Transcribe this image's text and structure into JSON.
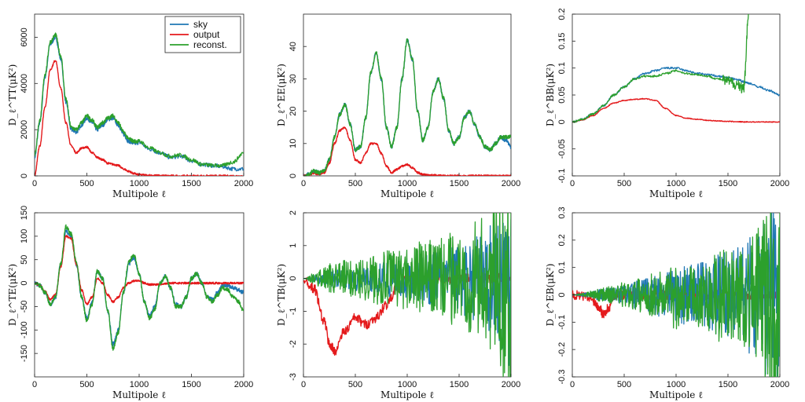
{
  "colors": {
    "sky": "#1f77b4",
    "output": "#e41a1c",
    "reconst": "#2ca02c"
  },
  "legend": {
    "placement": "top-right of first panel",
    "entries": [
      {
        "key": "sky",
        "label": "sky"
      },
      {
        "key": "output",
        "label": "output"
      },
      {
        "key": "reconst",
        "label": "reconst."
      }
    ]
  },
  "chart_data": [
    {
      "id": "TT",
      "type": "line",
      "ylabel": "D_ℓ^TT(μK²)",
      "xlabel": "Multipole ℓ",
      "xlim": [
        0,
        2000
      ],
      "ylim": [
        0,
        7000
      ],
      "xticks": [
        "0",
        "500",
        "1000",
        "1500",
        "2000"
      ],
      "yticks": [
        {
          "v": 0,
          "t": "0"
        },
        {
          "v": 2000,
          "t": "2000"
        },
        {
          "v": 4000,
          "t": "4000"
        },
        {
          "v": 6000,
          "t": "6000"
        }
      ],
      "x": [
        0,
        50,
        100,
        150,
        200,
        250,
        300,
        350,
        400,
        450,
        500,
        550,
        600,
        650,
        700,
        750,
        800,
        850,
        900,
        950,
        1000,
        1100,
        1200,
        1300,
        1400,
        1500,
        1600,
        1700,
        1800,
        1900,
        2000
      ],
      "series": [
        {
          "key": "sky",
          "values": [
            800,
            2300,
            4300,
            5700,
            6000,
            5100,
            3200,
            2000,
            1900,
            2200,
            2500,
            2300,
            2000,
            2200,
            2450,
            2500,
            2200,
            1800,
            1500,
            1400,
            1450,
            1150,
            1000,
            800,
            850,
            650,
            500,
            450,
            400,
            300,
            300
          ]
        },
        {
          "key": "output",
          "values": [
            0,
            1300,
            3000,
            4600,
            5000,
            3800,
            2300,
            1300,
            1000,
            1200,
            1250,
            1000,
            800,
            700,
            550,
            500,
            450,
            300,
            200,
            100,
            50,
            30,
            10,
            5,
            0,
            0,
            0,
            0,
            0,
            0,
            0
          ]
        },
        {
          "key": "reconst",
          "values": [
            900,
            2400,
            4400,
            5800,
            6100,
            5200,
            3300,
            2100,
            2000,
            2300,
            2600,
            2400,
            2100,
            2300,
            2500,
            2600,
            2300,
            1900,
            1600,
            1500,
            1500,
            1200,
            1000,
            850,
            900,
            700,
            500,
            450,
            450,
            600,
            1000
          ]
        }
      ]
    },
    {
      "id": "EE",
      "type": "line",
      "ylabel": "D_ℓ^EE(μK²)",
      "xlabel": "Multipole ℓ",
      "xlim": [
        0,
        2000
      ],
      "ylim": [
        0,
        50
      ],
      "xticks": [
        "0",
        "500",
        "1000",
        "1500",
        "2000"
      ],
      "yticks": [
        {
          "v": 0,
          "t": "0"
        },
        {
          "v": 10,
          "t": "10"
        },
        {
          "v": 20,
          "t": "20"
        },
        {
          "v": 30,
          "t": "30"
        },
        {
          "v": 40,
          "t": "40"
        }
      ],
      "x": [
        0,
        50,
        100,
        150,
        200,
        250,
        300,
        350,
        400,
        450,
        500,
        550,
        600,
        650,
        700,
        750,
        800,
        850,
        900,
        950,
        1000,
        1050,
        1100,
        1150,
        1200,
        1250,
        1300,
        1350,
        1400,
        1450,
        1500,
        1550,
        1600,
        1650,
        1700,
        1750,
        1800,
        1850,
        1900,
        1950,
        2000
      ],
      "series": [
        {
          "key": "sky",
          "values": [
            0,
            0.5,
            1.5,
            1,
            1.5,
            5,
            12,
            19,
            22,
            16,
            8,
            9,
            18,
            32,
            38,
            30,
            15,
            9,
            15,
            30,
            42,
            36,
            20,
            11,
            15,
            26,
            30,
            24,
            14,
            10,
            12,
            18,
            20,
            16,
            12,
            9,
            8,
            10,
            12,
            11,
            9
          ]
        },
        {
          "key": "output",
          "values": [
            0,
            0.3,
            0.8,
            0.5,
            1,
            4,
            10,
            14,
            15,
            11,
            5,
            4,
            7,
            10,
            10,
            7,
            3,
            1,
            2,
            3,
            3.5,
            2.5,
            1,
            0.5,
            0.3,
            0.2,
            0.1,
            0,
            0,
            0,
            0,
            0,
            0,
            0,
            0,
            0,
            0,
            0,
            0,
            0,
            0
          ]
        },
        {
          "key": "reconst",
          "values": [
            0,
            0.5,
            1.5,
            1,
            1.5,
            5,
            12,
            19,
            22,
            16,
            8,
            9,
            18,
            32,
            38,
            30,
            15,
            9,
            15,
            30,
            42,
            36,
            20,
            11,
            15,
            26,
            30,
            24,
            14,
            10,
            12,
            18,
            20,
            16,
            12,
            9,
            8,
            10,
            12,
            12,
            12
          ]
        }
      ]
    },
    {
      "id": "BB",
      "type": "line",
      "ylabel": "D_ℓ^BB(μK²)",
      "xlabel": "Multipole ℓ",
      "xlim": [
        0,
        2000
      ],
      "ylim": [
        -0.1,
        0.2
      ],
      "xticks": [
        "0",
        "500",
        "1000",
        "1500",
        "2000"
      ],
      "yticks": [
        {
          "v": -0.1,
          "t": "-0.1"
        },
        {
          "v": -0.05,
          "t": "-0.05"
        },
        {
          "v": 0,
          "t": "0"
        },
        {
          "v": 0.05,
          "t": "0.05"
        },
        {
          "v": 0.1,
          "t": "0.1"
        },
        {
          "v": 0.15,
          "t": "0.15"
        },
        {
          "v": 0.2,
          "t": "0.2"
        }
      ],
      "x": [
        0,
        100,
        200,
        300,
        400,
        500,
        600,
        700,
        800,
        900,
        1000,
        1100,
        1200,
        1300,
        1400,
        1500,
        1600,
        1650,
        1700,
        1800,
        1900,
        2000
      ],
      "series": [
        {
          "key": "sky",
          "values": [
            0,
            0.005,
            0.015,
            0.03,
            0.05,
            0.065,
            0.08,
            0.09,
            0.095,
            0.1,
            0.1,
            0.095,
            0.09,
            0.088,
            0.085,
            0.082,
            0.078,
            0.075,
            0.072,
            0.065,
            0.058,
            0.05
          ]
        },
        {
          "key": "output",
          "values": [
            0,
            0.004,
            0.012,
            0.025,
            0.035,
            0.04,
            0.042,
            0.043,
            0.04,
            0.025,
            0.012,
            0.007,
            0.005,
            0.003,
            0.002,
            0.001,
            0.0005,
            0,
            0,
            0,
            0,
            0
          ]
        },
        {
          "key": "reconst",
          "values": [
            0,
            0.005,
            0.015,
            0.03,
            0.05,
            0.065,
            0.08,
            0.085,
            0.085,
            0.09,
            0.095,
            0.09,
            0.088,
            0.085,
            0.08,
            0.075,
            0.07,
            0.06,
            0.2,
            null,
            null,
            null
          ]
        }
      ]
    },
    {
      "id": "TE",
      "type": "line",
      "ylabel": "D_ℓ^TE(μK²)",
      "xlabel": "Multipole ℓ",
      "xlim": [
        0,
        2000
      ],
      "ylim": [
        -200,
        150
      ],
      "xticks": [
        "0",
        "500",
        "1000",
        "1500",
        "2000"
      ],
      "yticks": [
        {
          "v": -150,
          "t": "-150"
        },
        {
          "v": -100,
          "t": "-100"
        },
        {
          "v": -50,
          "t": "-50"
        },
        {
          "v": 0,
          "t": "0"
        },
        {
          "v": 50,
          "t": "50"
        },
        {
          "v": 100,
          "t": "100"
        },
        {
          "v": 150,
          "t": "150"
        }
      ],
      "x": [
        0,
        50,
        100,
        150,
        200,
        250,
        300,
        350,
        400,
        450,
        500,
        550,
        600,
        650,
        700,
        750,
        800,
        850,
        900,
        950,
        1000,
        1050,
        1100,
        1150,
        1200,
        1250,
        1300,
        1350,
        1400,
        1450,
        1500,
        1550,
        1600,
        1650,
        1700,
        1750,
        1800,
        1850,
        1900,
        1950,
        2000
      ],
      "series": [
        {
          "key": "sky",
          "values": [
            0,
            -5,
            -20,
            -45,
            -30,
            40,
            110,
            100,
            40,
            -30,
            -75,
            -40,
            25,
            10,
            -60,
            -130,
            -100,
            -20,
            40,
            55,
            20,
            -40,
            -70,
            -50,
            0,
            15,
            -10,
            -45,
            -50,
            -30,
            10,
            20,
            0,
            -30,
            -35,
            -20,
            -5,
            -5,
            -10,
            -15,
            -20
          ]
        },
        {
          "key": "output",
          "values": [
            0,
            -5,
            -18,
            -35,
            -25,
            35,
            100,
            95,
            40,
            -15,
            -45,
            -30,
            10,
            0,
            -25,
            -40,
            -30,
            -10,
            0,
            5,
            5,
            0,
            -3,
            -3,
            -2,
            -1,
            0,
            0,
            0,
            0,
            0,
            0,
            0,
            0,
            0,
            0,
            0,
            0,
            0,
            0,
            0
          ]
        },
        {
          "key": "reconst",
          "values": [
            0,
            -5,
            -20,
            -45,
            -30,
            40,
            120,
            105,
            45,
            -30,
            -80,
            -45,
            25,
            10,
            -60,
            -140,
            -105,
            -20,
            45,
            60,
            20,
            -40,
            -75,
            -55,
            0,
            15,
            -10,
            -50,
            -50,
            -30,
            10,
            20,
            0,
            -30,
            -40,
            -25,
            -10,
            -15,
            -30,
            -40,
            -60
          ]
        }
      ]
    },
    {
      "id": "TB",
      "type": "line",
      "ylabel": "D_ℓ^TB(μK²)",
      "xlabel": "Multipole ℓ",
      "xlim": [
        0,
        2000
      ],
      "ylim": [
        -3,
        2
      ],
      "xticks": [
        "0",
        "500",
        "1000",
        "1500",
        "2000"
      ],
      "yticks": [
        {
          "v": -3,
          "t": "-3"
        },
        {
          "v": -2,
          "t": "-2"
        },
        {
          "v": -1,
          "t": "-1"
        },
        {
          "v": 0,
          "t": "0"
        },
        {
          "v": 1,
          "t": "1"
        },
        {
          "v": 2,
          "t": "2"
        }
      ],
      "x": [
        0,
        100,
        200,
        250,
        300,
        400,
        500,
        600,
        700,
        800,
        900,
        1000,
        1100,
        1200,
        1300,
        1400,
        1500,
        1600,
        1700,
        1800,
        1900,
        2000
      ],
      "series": [
        {
          "key": "output",
          "values": [
            0,
            -0.3,
            -1.3,
            -2.0,
            -2.2,
            -1.6,
            -1.2,
            -1.4,
            -1.2,
            -0.8,
            -0.3,
            0,
            0,
            0,
            0,
            0,
            0,
            0,
            0,
            0,
            0,
            0
          ]
        },
        {
          "key": "sky",
          "values": [
            0,
            0.2,
            0.3,
            0.4,
            0.4,
            0.4,
            0.5,
            0.5,
            0.5,
            0.6,
            0.6,
            0.6,
            0.7,
            0.7,
            0.7,
            0.8,
            0.8,
            0.9,
            1.0,
            1.1,
            1.4,
            1.8
          ]
        },
        {
          "key": "reconst",
          "values": [
            0,
            0.3,
            0.6,
            0.7,
            0.7,
            0.8,
            0.8,
            0.8,
            0.9,
            0.9,
            0.9,
            0.9,
            1.0,
            1.0,
            1.0,
            1.1,
            1.1,
            1.2,
            1.3,
            1.5,
            2.0,
            2.2
          ]
        }
      ]
    },
    {
      "id": "EB",
      "type": "line",
      "ylabel": "D_ℓ^EB(μK²)",
      "xlabel": "Multipole ℓ",
      "xlim": [
        0,
        2000
      ],
      "ylim": [
        -0.3,
        0.3
      ],
      "xticks": [
        "0",
        "500",
        "1000",
        "1500",
        "2000"
      ],
      "yticks": [
        {
          "v": -0.3,
          "t": "-0.3"
        },
        {
          "v": -0.2,
          "t": "-0.2"
        },
        {
          "v": -0.1,
          "t": "-0.1"
        },
        {
          "v": 0,
          "t": "0"
        },
        {
          "v": 0.1,
          "t": "0.1"
        },
        {
          "v": 0.2,
          "t": "0.2"
        },
        {
          "v": 0.3,
          "t": "0.3"
        }
      ],
      "x": [
        0,
        100,
        200,
        250,
        300,
        350,
        400,
        500,
        600,
        700,
        800,
        900,
        1000,
        1100,
        1200,
        1300,
        1400,
        1500,
        1600,
        1700,
        1800,
        1900,
        2000
      ],
      "series": [
        {
          "key": "output",
          "values": [
            0,
            -0.005,
            -0.02,
            -0.04,
            -0.07,
            -0.05,
            0,
            0,
            0,
            0,
            0,
            0,
            0,
            0,
            0,
            0,
            0,
            0,
            0,
            0,
            0,
            0,
            0
          ]
        },
        {
          "key": "sky",
          "values": [
            0,
            0.01,
            0.02,
            0.03,
            0.03,
            0.04,
            0.04,
            0.05,
            0.06,
            0.07,
            0.08,
            0.09,
            0.1,
            0.1,
            0.1,
            0.11,
            0.12,
            0.12,
            0.13,
            0.15,
            0.17,
            0.2,
            0.2
          ]
        },
        {
          "key": "reconst",
          "values": [
            0,
            0.01,
            0.025,
            0.035,
            0.04,
            0.045,
            0.05,
            0.06,
            0.07,
            0.08,
            0.09,
            0.1,
            0.12,
            0.1,
            0.1,
            0.11,
            0.14,
            0.12,
            0.13,
            0.15,
            0.17,
            0.3,
            0.3
          ]
        }
      ]
    }
  ]
}
